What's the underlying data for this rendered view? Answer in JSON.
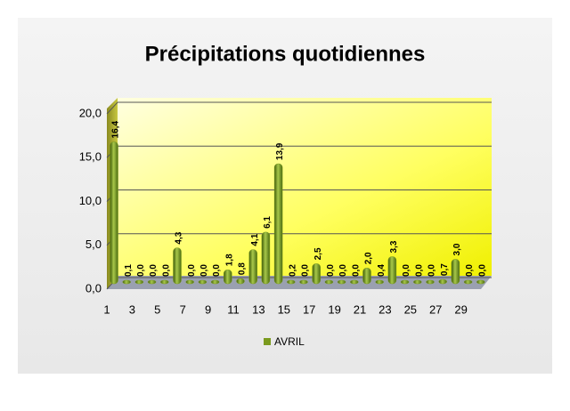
{
  "chart_data": {
    "type": "bar",
    "title": "Précipitations quotidiennes",
    "categories": [
      "1",
      null,
      "3",
      null,
      "5",
      null,
      "7",
      null,
      "9",
      null,
      "11",
      null,
      "13",
      null,
      "15",
      null,
      "17",
      null,
      "19",
      null,
      "21",
      null,
      "23",
      null,
      "25",
      null,
      "27",
      null,
      "29",
      null
    ],
    "series": [
      {
        "name": "AVRIL",
        "color": "#7a9a1e",
        "values": [
          16.4,
          0.1,
          0.0,
          0.0,
          0.0,
          4.3,
          0.0,
          0.0,
          0.0,
          1.8,
          0.8,
          4.1,
          6.1,
          13.9,
          0.2,
          0.0,
          2.5,
          0.0,
          0.0,
          0.0,
          2.0,
          0.4,
          3.3,
          0.0,
          0.0,
          0.0,
          0.7,
          3.0,
          0.0,
          0.0
        ],
        "value_labels": [
          "16,4",
          "0,1",
          "0,0",
          "0,0",
          "0,0",
          "4,3",
          "0,0",
          "0,0",
          "0,0",
          "1,8",
          "0,8",
          "4,1",
          "6,1",
          "13,9",
          "0,2",
          "0,0",
          "2,5",
          "0,0",
          "0,0",
          "0,0",
          "2,0",
          "0,4",
          "3,3",
          "0,0",
          "0,0",
          "0,0",
          "0,7",
          "3,0",
          "0,0",
          "0,0"
        ]
      }
    ],
    "ylim": [
      0,
      20
    ],
    "yticks": [
      {
        "value": 0,
        "label": "0,0"
      },
      {
        "value": 5,
        "label": "5,0"
      },
      {
        "value": 10,
        "label": "10,0"
      },
      {
        "value": 15,
        "label": "15,0"
      },
      {
        "value": 20,
        "label": "20,0"
      }
    ],
    "grid": true,
    "legend": "bottom"
  }
}
